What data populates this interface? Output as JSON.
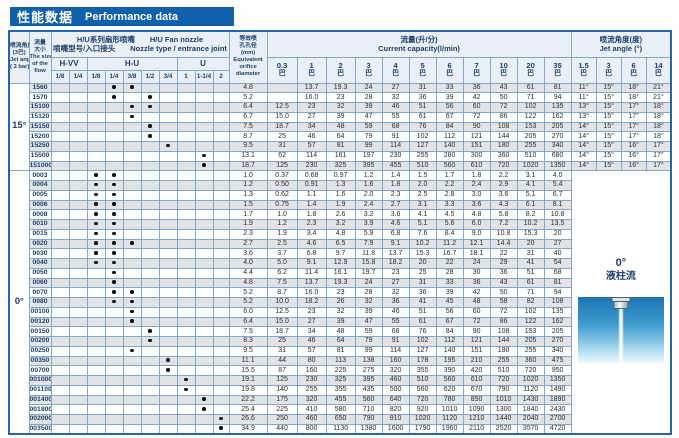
{
  "title": {
    "zh": "性能数据",
    "en": "Performance data"
  },
  "table": {
    "header": {
      "angle_col_lines": [
        "喷流角度",
        "(3巴)",
        "Jet angle",
        "( 3 bar)"
      ],
      "flow_col_lines": [
        "流量",
        "大小",
        "The size",
        "of the",
        "flow"
      ],
      "nozzle_group_line1": "H/U系列扇形喷嘴　　H/U  Fan nozzle",
      "nozzle_group_line2": "喷嘴型号/入口接头　　Nozzle type / entrance joint",
      "nozzle_types": [
        {
          "label": "H-VV",
          "span": 2
        },
        {
          "label": "H-U",
          "span": 5
        },
        {
          "label": "U",
          "span": 3
        }
      ],
      "sizes": [
        "1/8",
        "1/4",
        "1/8",
        "1/4",
        "3/8",
        "1/2",
        "3/4",
        "1",
        "1-1/4",
        "2"
      ],
      "orifice_col_lines": [
        "等效喷",
        "孔孔径",
        "(mm)",
        "Equivalent",
        "orifice",
        "diameter"
      ],
      "capacity_group_lines": [
        "流量(升/分)",
        "Current capacity(l/min)"
      ],
      "pressures": [
        "0.3",
        "1",
        "2",
        "3",
        "4",
        "5",
        "6",
        "7",
        "10",
        "20",
        "35"
      ],
      "pressure_unit": "巴",
      "angle_group_lines": [
        "喷流角度(度)",
        "Jet angle (°)"
      ],
      "angle_pressures": [
        "1.5",
        "3",
        "6",
        "14"
      ]
    },
    "sections": [
      {
        "angle_label": "15°",
        "rows": [
          {
            "flow": "1560",
            "dots": [
              4,
              5
            ],
            "orifice": "4.8",
            "capacity": [
              "",
              "13.7",
              "19.3",
              "24",
              "27",
              "31",
              "33",
              "36",
              "43",
              "61",
              "81"
            ],
            "angles": [
              "11°",
              "15°",
              "18°",
              "21°"
            ]
          },
          {
            "flow": "1570",
            "dots": [
              4,
              6
            ],
            "orifice": "5.2",
            "capacity": [
              "",
              "16.0",
              "23",
              "28",
              "32",
              "36",
              "39",
              "42",
              "50",
              "71",
              "94"
            ],
            "angles": [
              "11°",
              "15°",
              "18°",
              "21°"
            ]
          },
          {
            "flow": "15100",
            "dots": [
              5,
              6
            ],
            "orifice": "6.4",
            "capacity": [
              "12.5",
              "23",
              "32",
              "39",
              "46",
              "51",
              "56",
              "60",
              "72",
              "102",
              "135"
            ],
            "angles": [
              "13°",
              "15°",
              "17°",
              "18°"
            ]
          },
          {
            "flow": "15120",
            "dots": [
              5
            ],
            "orifice": "6.7",
            "capacity": [
              "15.0",
              "27",
              "39",
              "47",
              "55",
              "61",
              "67",
              "72",
              "86",
              "122",
              "162"
            ],
            "angles": [
              "13°",
              "15°",
              "17°",
              "18°"
            ]
          },
          {
            "flow": "15150",
            "dots": [
              6
            ],
            "orifice": "7.5",
            "capacity": [
              "18.7",
              "34",
              "48",
              "59",
              "68",
              "76",
              "84",
              "90",
              "108",
              "153",
              "205"
            ],
            "angles": [
              "14°",
              "15°",
              "17°",
              "18°"
            ]
          },
          {
            "flow": "15200",
            "dots": [
              6
            ],
            "orifice": "8.7",
            "capacity": [
              "25",
              "46",
              "64",
              "79",
              "91",
              "102",
              "112",
              "121",
              "144",
              "205",
              "270"
            ],
            "angles": [
              "14°",
              "15°",
              "17°",
              "18°"
            ]
          },
          {
            "flow": "15250",
            "dots": [
              7
            ],
            "orifice": "9.5",
            "capacity": [
              "31",
              "57",
              "81",
              "99",
              "114",
              "127",
              "140",
              "151",
              "180",
              "255",
              "340"
            ],
            "angles": [
              "14°",
              "15°",
              "16°",
              "17°"
            ]
          },
          {
            "flow": "15500",
            "dots": [
              9
            ],
            "orifice": "13.1",
            "capacity": [
              "62",
              "114",
              "161",
              "197",
              "230",
              "255",
              "280",
              "300",
              "360",
              "510",
              "680"
            ],
            "angles": [
              "14°",
              "15°",
              "16°",
              "17°"
            ]
          },
          {
            "flow": "151000",
            "dots": [
              9
            ],
            "orifice": "18.7",
            "capacity": [
              "125",
              "230",
              "325",
              "395",
              "455",
              "510",
              "560",
              "610",
              "720",
              "1020",
              "1350"
            ],
            "angles": [
              "14°",
              "15°",
              "16°",
              "17°"
            ]
          }
        ]
      },
      {
        "angle_label": "0°",
        "panel": {
          "line1": "0°",
          "line2": "液柱流"
        },
        "rows": [
          {
            "flow": "0003",
            "dots": [
              3,
              4
            ],
            "orifice": "1.0",
            "capacity": [
              "0.37",
              "0.68",
              "0.97",
              "1.2",
              "1.4",
              "1.5",
              "1.7",
              "1.8",
              "2.2",
              "3.1",
              "4.0"
            ]
          },
          {
            "flow": "0004",
            "dots": [
              3,
              4
            ],
            "orifice": "1.2",
            "capacity": [
              "0.50",
              "0.91",
              "1.3",
              "1.6",
              "1.8",
              "2.0",
              "2.2",
              "2.4",
              "2.9",
              "4.1",
              "5.4"
            ]
          },
          {
            "flow": "0005",
            "dots": [
              3,
              4
            ],
            "orifice": "1.3",
            "capacity": [
              "0.62",
              "1.1",
              "1.6",
              "2.0",
              "2.3",
              "2.5",
              "2.8",
              "3.0",
              "3.6",
              "5.1",
              "6.7"
            ]
          },
          {
            "flow": "0006",
            "dots": [
              3,
              4
            ],
            "orifice": "1.5",
            "capacity": [
              "0.75",
              "1.4",
              "1.9",
              "2.4",
              "2.7",
              "3.1",
              "3.3",
              "3.6",
              "4.3",
              "6.1",
              "8.1"
            ]
          },
          {
            "flow": "0008",
            "dots": [
              3,
              4
            ],
            "orifice": "1.7",
            "capacity": [
              "1.0",
              "1.8",
              "2.6",
              "3.2",
              "3.6",
              "4.1",
              "4.5",
              "4.8",
              "5.8",
              "8.2",
              "10.8"
            ]
          },
          {
            "flow": "0010",
            "dots": [
              3,
              4
            ],
            "orifice": "1.9",
            "capacity": [
              "1.2",
              "2.3",
              "3.2",
              "3.9",
              "4.6",
              "5.1",
              "5.6",
              "6.0",
              "7.2",
              "10.2",
              "13.5"
            ]
          },
          {
            "flow": "0015",
            "dots": [
              3,
              4
            ],
            "orifice": "2.3",
            "capacity": [
              "1.9",
              "3.4",
              "4.8",
              "5.9",
              "6.8",
              "7.6",
              "8.4",
              "9.0",
              "10.8",
              "15.3",
              "20"
            ]
          },
          {
            "flow": "0020",
            "dots": [
              3,
              4,
              5
            ],
            "orifice": "2.7",
            "capacity": [
              "2.5",
              "4.6",
              "6.5",
              "7.9",
              "9.1",
              "10.2",
              "11.2",
              "12.1",
              "14.4",
              "20",
              "27"
            ]
          },
          {
            "flow": "0030",
            "dots": [
              3,
              4
            ],
            "orifice": "3.6",
            "capacity": [
              "3.7",
              "6.8",
              "9.7",
              "11.8",
              "13.7",
              "15.3",
              "16.7",
              "18.1",
              "22",
              "31",
              "40"
            ]
          },
          {
            "flow": "0040",
            "dots": [
              3,
              4
            ],
            "orifice": "4.0",
            "capacity": [
              "5.0",
              "9.1",
              "12.9",
              "15.8",
              "18.2",
              "20",
              "22",
              "24",
              "29",
              "41",
              "54"
            ]
          },
          {
            "flow": "0050",
            "dots": [
              4
            ],
            "orifice": "4.4",
            "capacity": [
              "6.2",
              "11.4",
              "16.1",
              "19.7",
              "23",
              "25",
              "28",
              "30",
              "36",
              "51",
              "68"
            ]
          },
          {
            "flow": "0060",
            "dots": [
              4
            ],
            "orifice": "4.8",
            "capacity": [
              "7.5",
              "13.7",
              "19.3",
              "24",
              "27",
              "31",
              "33",
              "36",
              "43",
              "61",
              "81"
            ]
          },
          {
            "flow": "0070",
            "dots": [
              4,
              5
            ],
            "orifice": "5.2",
            "capacity": [
              "8.7",
              "16.0",
              "23",
              "28",
              "32",
              "36",
              "39",
              "42",
              "50",
              "71",
              "94"
            ]
          },
          {
            "flow": "0080",
            "dots": [
              4,
              5
            ],
            "orifice": "5.2",
            "capacity": [
              "10.0",
              "18.2",
              "26",
              "32",
              "36",
              "41",
              "45",
              "48",
              "58",
              "82",
              "108"
            ]
          },
          {
            "flow": "00100",
            "dots": [
              5
            ],
            "orifice": "6.0",
            "capacity": [
              "12.5",
              "23",
              "32",
              "39",
              "46",
              "51",
              "56",
              "60",
              "72",
              "102",
              "135"
            ]
          },
          {
            "flow": "00120",
            "dots": [
              5
            ],
            "orifice": "6.4",
            "capacity": [
              "15.0",
              "27",
              "39",
              "47",
              "55",
              "61",
              "67",
              "72",
              "86",
              "122",
              "162"
            ]
          },
          {
            "flow": "00150",
            "dots": [
              6
            ],
            "orifice": "7.5",
            "capacity": [
              "18.7",
              "34",
              "48",
              "59",
              "68",
              "76",
              "84",
              "90",
              "108",
              "153",
              "205"
            ]
          },
          {
            "flow": "00200",
            "dots": [
              6
            ],
            "orifice": "8.3",
            "capacity": [
              "25",
              "46",
              "64",
              "79",
              "91",
              "102",
              "112",
              "121",
              "144",
              "205",
              "270"
            ]
          },
          {
            "flow": "00250",
            "dots": [
              5
            ],
            "orifice": "9.5",
            "capacity": [
              "31",
              "57",
              "81",
              "99",
              "114",
              "127",
              "140",
              "151",
              "180",
              "255",
              "340"
            ]
          },
          {
            "flow": "00350",
            "dots": [
              7
            ],
            "orifice": "11.1",
            "capacity": [
              "44",
              "80",
              "113",
              "138",
              "160",
              "178",
              "195",
              "210",
              "255",
              "360",
              "475"
            ]
          },
          {
            "flow": "00700",
            "dots": [
              7
            ],
            "orifice": "15.5",
            "capacity": [
              "87",
              "160",
              "225",
              "275",
              "320",
              "355",
              "390",
              "420",
              "510",
              "720",
              "950"
            ]
          },
          {
            "flow": "001000",
            "dots": [
              8
            ],
            "orifice": "19.1",
            "capacity": [
              "125",
              "230",
              "325",
              "395",
              "460",
              "510",
              "560",
              "610",
              "720",
              "1020",
              "1350"
            ]
          },
          {
            "flow": "001100",
            "dots": [
              8
            ],
            "orifice": "19.8",
            "capacity": [
              "140",
              "255",
              "355",
              "435",
              "500",
              "560",
              "620",
              "670",
              "790",
              "1120",
              "1490"
            ]
          },
          {
            "flow": "001400",
            "dots": [
              9
            ],
            "orifice": "22.2",
            "capacity": [
              "175",
              "320",
              "455",
              "560",
              "640",
              "720",
              "780",
              "850",
              "1010",
              "1430",
              "1890"
            ]
          },
          {
            "flow": "001800",
            "dots": [
              9
            ],
            "orifice": "25.4",
            "capacity": [
              "225",
              "410",
              "580",
              "710",
              "820",
              "920",
              "1010",
              "1090",
              "1300",
              "1840",
              "2430"
            ]
          },
          {
            "flow": "002000",
            "dots": [
              10
            ],
            "orifice": "26.6",
            "capacity": [
              "250",
              "460",
              "650",
              "790",
              "910",
              "1020",
              "1120",
              "1210",
              "1440",
              "2040",
              "2700"
            ]
          },
          {
            "flow": "003500",
            "dots": [
              10
            ],
            "orifice": "34.9",
            "capacity": [
              "440",
              "800",
              "1130",
              "1380",
              "1600",
              "1790",
              "1960",
              "2110",
              "2520",
              "3570",
              "4720"
            ]
          }
        ]
      }
    ]
  }
}
